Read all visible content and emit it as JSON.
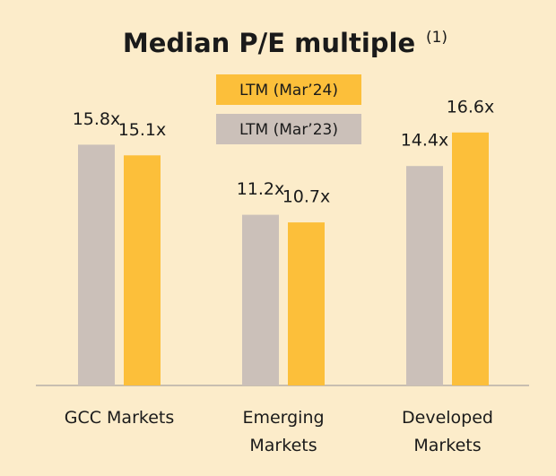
{
  "chart_data": {
    "type": "bar",
    "title": "Median P/E multiple",
    "title_superscript": "(1)",
    "categories": [
      "GCC Markets",
      "Emerging Markets",
      "Developed Markets"
    ],
    "series": [
      {
        "name": "LTM (Mar’23)",
        "color": "#cbc0b9",
        "values": [
          15.8,
          11.2,
          14.4
        ],
        "value_labels": [
          "15.8x",
          "11.2x",
          "14.4x"
        ]
      },
      {
        "name": "LTM (Mar’24)",
        "color": "#fcbf3a",
        "values": [
          15.1,
          10.7,
          16.6
        ],
        "value_labels": [
          "15.1x",
          "10.7x",
          "16.6x"
        ]
      }
    ],
    "ylim": [
      0,
      25
    ]
  }
}
